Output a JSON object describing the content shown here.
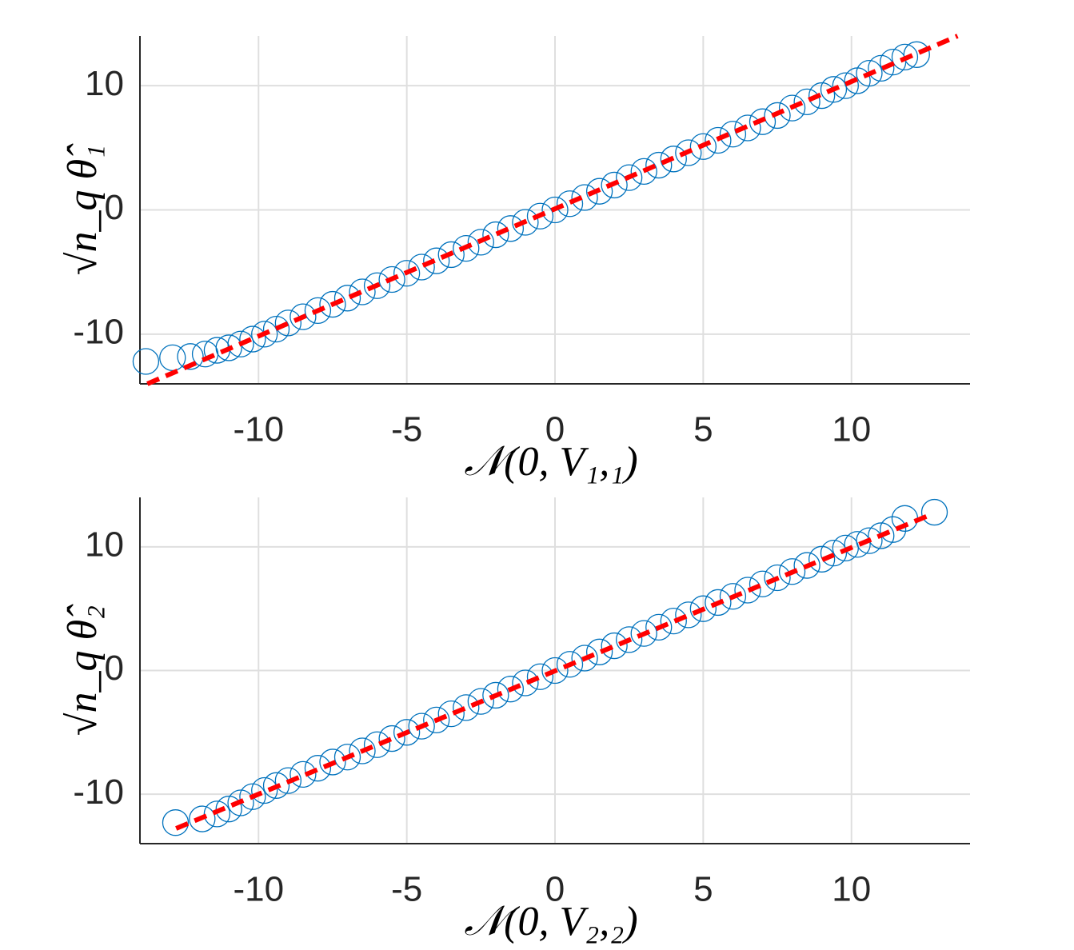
{
  "chart_data": [
    {
      "type": "scatter",
      "xlabel": "𝒩(0, V₁,₁)",
      "ylabel": "√n_q θ̂₁",
      "xlim": [
        -14,
        14
      ],
      "ylim": [
        -14,
        14
      ],
      "xticks": [
        -10,
        -5,
        0,
        5,
        10
      ],
      "yticks": [
        -10,
        0,
        10
      ],
      "grid": true,
      "color": "#0072bd",
      "x": [
        -13.8,
        -12.9,
        -12.3,
        -11.8,
        -11.4,
        -11.0,
        -10.6,
        -10.2,
        -9.8,
        -9.4,
        -9,
        -8.5,
        -8,
        -7.5,
        -7,
        -6.5,
        -6,
        -5.5,
        -5,
        -4.5,
        -4,
        -3.5,
        -3,
        -2.5,
        -2,
        -1.5,
        -1,
        -0.5,
        0,
        0.5,
        1,
        1.5,
        2,
        2.5,
        3,
        3.5,
        4,
        4.5,
        5,
        5.5,
        6,
        6.5,
        7,
        7.5,
        8,
        8.5,
        9,
        9.4,
        9.8,
        10.2,
        10.6,
        11.0,
        11.4,
        11.8,
        12.2
      ],
      "y": [
        -12.2,
        -11.9,
        -11.8,
        -11.6,
        -11.3,
        -11.1,
        -10.8,
        -10.4,
        -10.0,
        -9.6,
        -9.1,
        -8.6,
        -8.1,
        -7.6,
        -7.1,
        -6.6,
        -6.1,
        -5.6,
        -5.1,
        -4.6,
        -4.1,
        -3.6,
        -3.1,
        -2.6,
        -2.0,
        -1.5,
        -1.0,
        -0.5,
        0,
        0.5,
        1.0,
        1.5,
        2.0,
        2.6,
        3.1,
        3.6,
        4.1,
        4.6,
        5.1,
        5.6,
        6.1,
        6.6,
        7.1,
        7.6,
        8.2,
        8.7,
        9.2,
        9.7,
        10.0,
        10.4,
        11.0,
        11.4,
        11.9,
        12.3,
        12.5
      ],
      "fit_line": {
        "color": "#ff0000",
        "x": [
          -13.75,
          13.58
        ],
        "y": [
          -14,
          14
        ]
      }
    },
    {
      "type": "scatter",
      "xlabel": "𝒩(0, V₂,₂)",
      "ylabel": "√n_q θ̂₂",
      "xlim": [
        -14,
        14
      ],
      "ylim": [
        -14,
        14
      ],
      "xticks": [
        -10,
        -5,
        0,
        5,
        10
      ],
      "yticks": [
        -10,
        0,
        10
      ],
      "grid": true,
      "color": "#0072bd",
      "x": [
        -12.8,
        -11.9,
        -11.4,
        -11.0,
        -10.6,
        -10.2,
        -9.8,
        -9.4,
        -9,
        -8.5,
        -8,
        -7.5,
        -7,
        -6.5,
        -6,
        -5.5,
        -5,
        -4.5,
        -4,
        -3.5,
        -3,
        -2.5,
        -2,
        -1.5,
        -1,
        -0.5,
        0,
        0.5,
        1,
        1.5,
        2,
        2.5,
        3,
        3.5,
        4,
        4.5,
        5,
        5.5,
        6,
        6.5,
        7,
        7.5,
        8,
        8.5,
        9,
        9.4,
        9.8,
        10.2,
        10.6,
        11.0,
        11.4,
        11.8,
        12.8
      ],
      "y": [
        -12.3,
        -12.0,
        -11.6,
        -11.2,
        -10.7,
        -10.2,
        -9.7,
        -9.3,
        -8.9,
        -8.4,
        -7.9,
        -7.4,
        -7.0,
        -6.5,
        -6.0,
        -5.5,
        -5.0,
        -4.5,
        -4.0,
        -3.5,
        -3.0,
        -2.5,
        -2.0,
        -1.5,
        -1.0,
        -0.5,
        0,
        0.5,
        1.0,
        1.5,
        2.0,
        2.5,
        3.0,
        3.5,
        4.0,
        4.5,
        5.0,
        5.5,
        6.0,
        6.5,
        7.0,
        7.5,
        8.0,
        8.5,
        9.0,
        9.5,
        9.9,
        10.2,
        10.5,
        10.9,
        11.4,
        12.3,
        12.8
      ],
      "fit_line": {
        "color": "#ff0000",
        "x": [
          -12.78,
          12.72
        ],
        "y": [
          -12.77,
          12.65
        ]
      }
    }
  ]
}
